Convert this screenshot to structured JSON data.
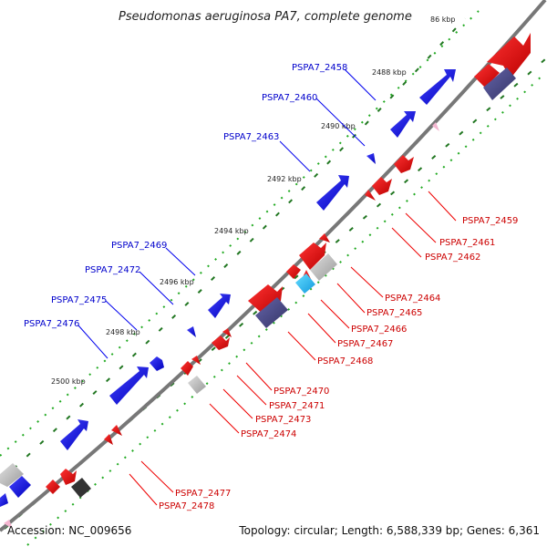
{
  "title": "Pseudomonas aeruginosa PA7, complete genome",
  "footer": {
    "accession": "Accession: NC_009656",
    "topology": "Topology: circular; Length: 6,588,339 bp; Genes: 6,361"
  },
  "ticks": [
    "86 kbp",
    "2488 kbp",
    "2490 kbp",
    "2492 kbp",
    "2494 kbp",
    "2496 kbp",
    "2498 kbp",
    "2500 kbp"
  ],
  "forward_labels": [
    "PSPA7_2458",
    "PSPA7_2460",
    "PSPA7_2463",
    "PSPA7_2469",
    "PSPA7_2472",
    "PSPA7_2475",
    "PSPA7_2476"
  ],
  "reverse_labels": [
    "PSPA7_2459",
    "PSPA7_2461",
    "PSPA7_2462",
    "PSPA7_2464",
    "PSPA7_2465",
    "PSPA7_2466",
    "PSPA7_2467",
    "PSPA7_2468",
    "PSPA7_2470",
    "PSPA7_2471",
    "PSPA7_2473",
    "PSPA7_2474",
    "PSPA7_2477",
    "PSPA7_2478"
  ],
  "colors": {
    "forward_gene": "#0000ee",
    "reverse_gene": "#ee0000",
    "rna_gene": "#33bbee",
    "other_gene": "#aaaaaa",
    "dark_feature": "#444488",
    "backbone": "#777777",
    "tick_dots": "#229922"
  }
}
